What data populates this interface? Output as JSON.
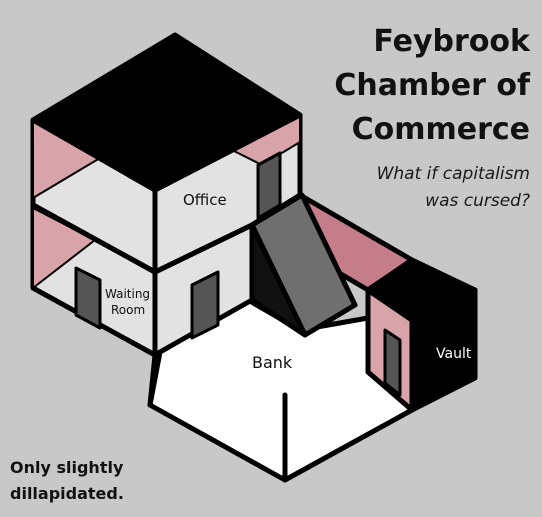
{
  "title": {
    "line1": "Feybrook",
    "line2": "Chamber of",
    "line3": "Commerce"
  },
  "subtitle": {
    "line1": "What if capitalism",
    "line2": "was cursed?"
  },
  "tagline": {
    "line1": "Only slightly",
    "line2": "dillapidated."
  },
  "rooms": {
    "office": "Office",
    "waiting_line1": "Waiting",
    "waiting_line2": "Room",
    "bank": "Bank",
    "vault": "Vault"
  },
  "colors": {
    "background": "#c8c8c8",
    "roof": "#000000",
    "wall_light": "#e2e2e2",
    "floor": "#ffffff",
    "pink": "#d9a3aa",
    "pink_dark": "#c47d89",
    "door": "#555555",
    "ramp": "#6f6f6f"
  }
}
